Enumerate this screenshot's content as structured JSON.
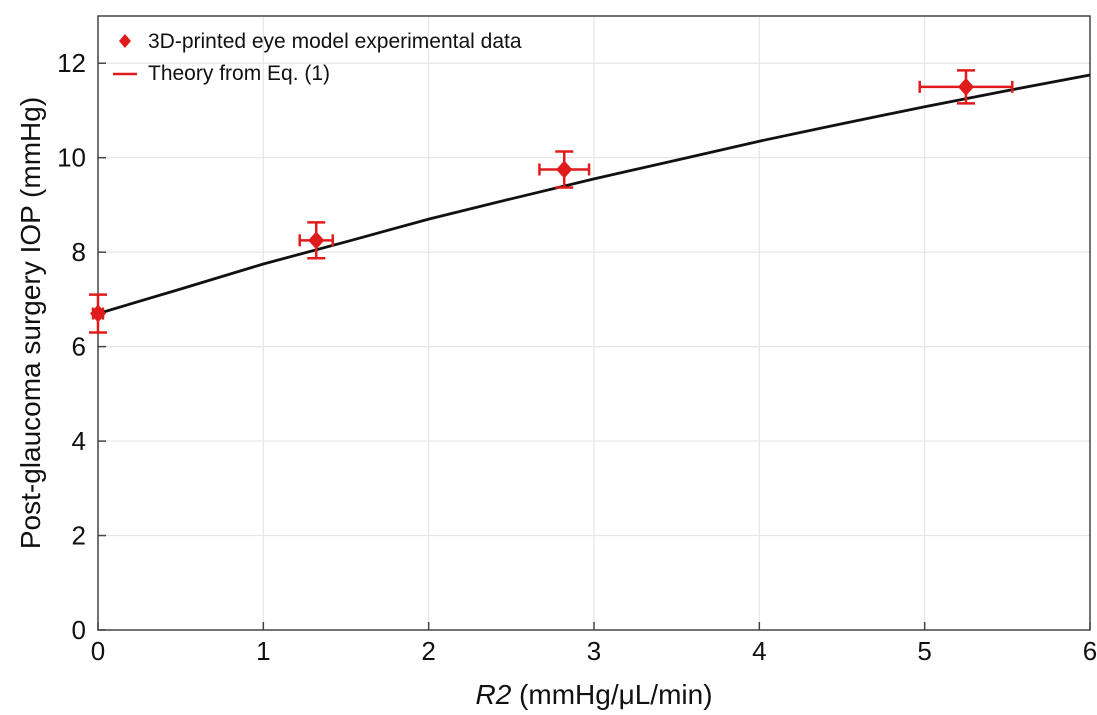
{
  "chart_data": {
    "type": "scatter",
    "title": "",
    "xlabel_italic": "R2",
    "xlabel_units": "(mmHg/μL/min)",
    "ylabel": "Post-glaucoma surgery IOP (mmHg)",
    "xlim": [
      0,
      6
    ],
    "ylim": [
      0,
      13
    ],
    "xticks": [
      0,
      1,
      2,
      3,
      4,
      5,
      6
    ],
    "yticks": [
      0,
      2,
      4,
      6,
      8,
      10,
      12
    ],
    "grid": true,
    "legend_position": "top-left",
    "series": [
      {
        "name": "3D-printed eye model experimental data",
        "kind": "points-with-errorbars",
        "marker": "diamond",
        "color": "#e01b1b",
        "points": [
          {
            "x": 0.0,
            "y": 6.7,
            "yerr": 0.4,
            "xerr": 0.03
          },
          {
            "x": 1.32,
            "y": 8.25,
            "yerr": 0.38,
            "xerr": 0.1
          },
          {
            "x": 2.82,
            "y": 9.75,
            "yerr": 0.38,
            "xerr": 0.15
          },
          {
            "x": 5.25,
            "y": 11.5,
            "yerr": 0.35,
            "xerr": 0.28
          }
        ]
      },
      {
        "name": "Theory from Eq. (1)",
        "kind": "line",
        "color": "#111111",
        "legend_color": "#e01b1b",
        "x": [
          0,
          0.5,
          1,
          1.5,
          2,
          2.5,
          3,
          3.5,
          4,
          4.5,
          5,
          5.5,
          6
        ],
        "y": [
          6.7,
          7.22,
          7.75,
          8.22,
          8.7,
          9.13,
          9.55,
          9.95,
          10.35,
          10.72,
          11.08,
          11.42,
          11.75
        ]
      }
    ]
  }
}
